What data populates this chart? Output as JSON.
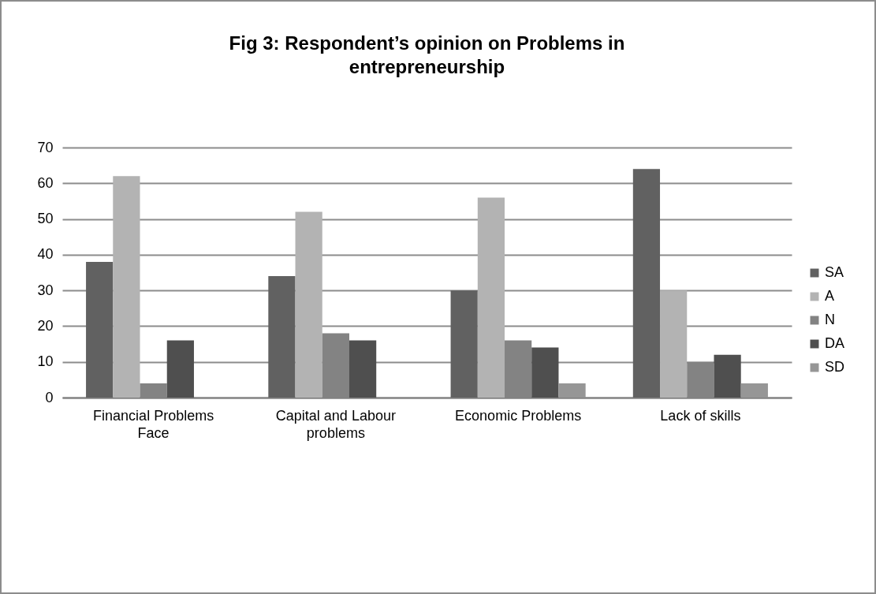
{
  "chart_data": {
    "type": "bar",
    "title": "Fig 3: Respondent’s opinion on Problems in entrepreneurship",
    "categories": [
      "Financial Problems Face",
      "Capital and Labour problems",
      "Economic Problems",
      "Lack of skills"
    ],
    "series": [
      {
        "name": "SA",
        "color": "#616161",
        "values": [
          38,
          34,
          30,
          64
        ]
      },
      {
        "name": "A",
        "color": "#b3b3b3",
        "values": [
          62,
          52,
          56,
          30
        ]
      },
      {
        "name": "N",
        "color": "#838383",
        "values": [
          4,
          18,
          16,
          10
        ]
      },
      {
        "name": "DA",
        "color": "#4f4f4f",
        "values": [
          16,
          16,
          14,
          12
        ]
      },
      {
        "name": "SD",
        "color": "#969696",
        "values": [
          null,
          null,
          4,
          4
        ]
      }
    ],
    "ylim": [
      0,
      70
    ],
    "yticks": [
      0,
      10,
      20,
      30,
      40,
      50,
      60,
      70
    ],
    "grid": "y",
    "legend": "right"
  }
}
